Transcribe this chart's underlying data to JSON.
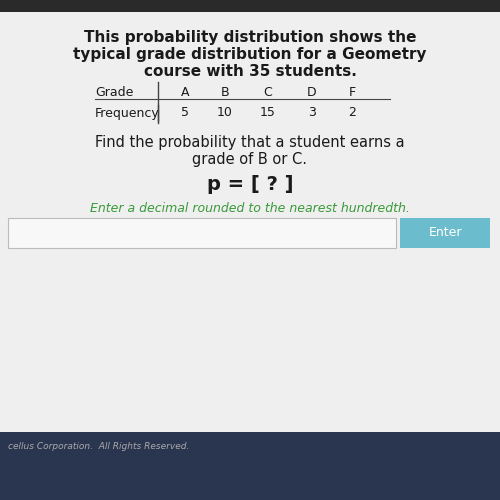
{
  "title_line1": "This probability distribution shows the",
  "title_line2": "typical grade distribution for a Geometry",
  "title_line3": "course with 35 students.",
  "table_headers": [
    "Grade",
    "A",
    "B",
    "C",
    "D",
    "F"
  ],
  "table_row_label": "Frequency",
  "table_values": [
    5,
    10,
    15,
    3,
    2
  ],
  "question_line1": "Find the probability that a student earns a",
  "question_line2": "grade of B or C.",
  "answer_line": "p = [ ? ]",
  "hint_line": "Enter a decimal rounded to the nearest hundredth.",
  "enter_button_text": "Enter",
  "top_bar_color": "#2a2a2a",
  "bg_color": "#d8d8d8",
  "content_bg_color": "#efefef",
  "title_color": "#1a1a1a",
  "question_color": "#1a1a1a",
  "hint_color": "#3a9a3a",
  "table_line_color": "#444444",
  "enter_button_color": "#6bbccc",
  "enter_button_text_color": "#ffffff",
  "input_box_color": "#f8f8f8",
  "input_box_border": "#bbbbbb",
  "footer_bg_color": "#2a3550",
  "footer_text_color": "#aaaaaa",
  "footer_text": "cellus Corporation.  All Rights Reserved."
}
